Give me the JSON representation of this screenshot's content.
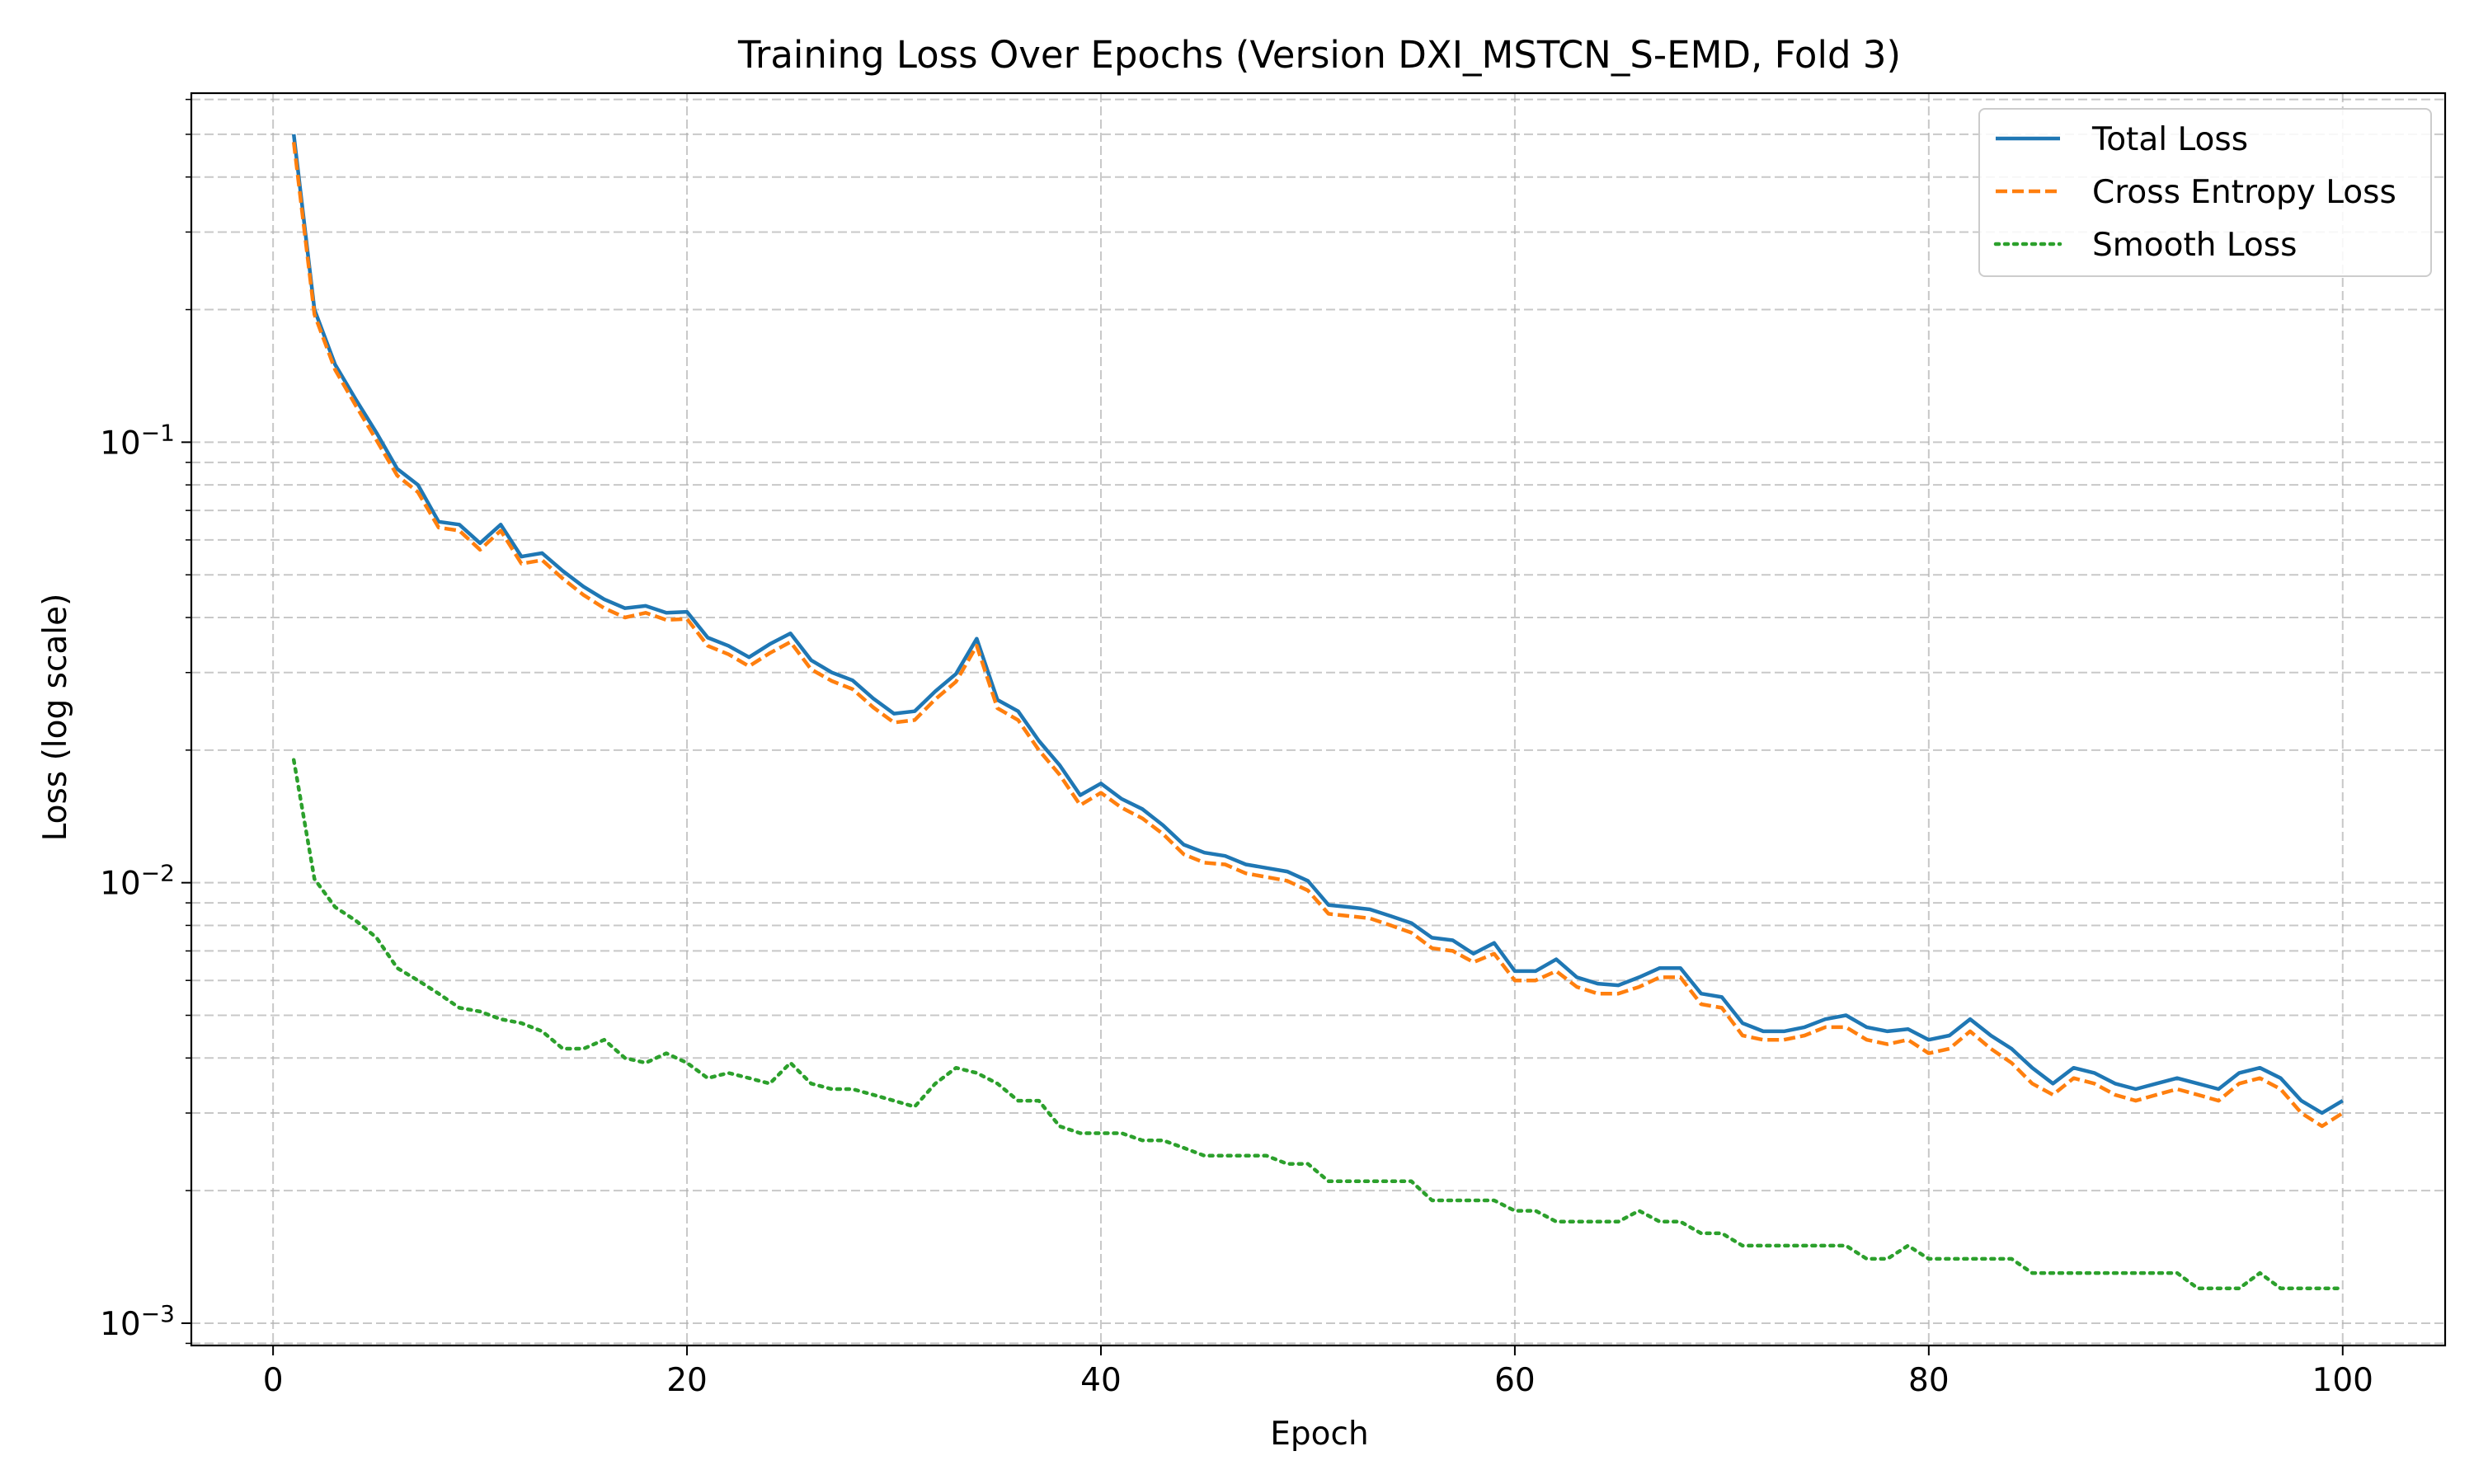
{
  "chart_data": {
    "type": "line",
    "title": "Training Loss Over Epochs (Version DXI_MSTCN_S-EMD, Fold 3)",
    "xlabel": "Epoch",
    "ylabel": "Loss (log scale)",
    "xscale": "linear",
    "yscale": "log",
    "xlim": [
      -3.95,
      104.95
    ],
    "ylim": [
      0.00089,
      0.62
    ],
    "xticks": [
      0,
      20,
      40,
      60,
      80,
      100
    ],
    "yticks": [
      {
        "value": 0.1,
        "base": "10",
        "exp": "−1"
      },
      {
        "value": 0.01,
        "base": "10",
        "exp": "−2"
      },
      {
        "value": 0.001,
        "base": "10",
        "exp": "−3"
      }
    ],
    "grid": true,
    "legend_position": "top-right",
    "series": [
      {
        "name": "Total Loss",
        "color": "#1f77b4",
        "style": "solid",
        "x": [
          1,
          2,
          3,
          4,
          5,
          6,
          7,
          8,
          9,
          10,
          11,
          12,
          13,
          14,
          15,
          16,
          17,
          18,
          19,
          20,
          21,
          22,
          23,
          24,
          25,
          26,
          27,
          28,
          29,
          30,
          31,
          32,
          33,
          34,
          35,
          36,
          37,
          38,
          39,
          40,
          41,
          42,
          43,
          44,
          45,
          46,
          47,
          48,
          49,
          50,
          51,
          52,
          53,
          54,
          55,
          56,
          57,
          58,
          59,
          60,
          61,
          62,
          63,
          64,
          65,
          66,
          67,
          68,
          69,
          70,
          71,
          72,
          73,
          74,
          75,
          76,
          77,
          78,
          79,
          80,
          81,
          82,
          83,
          84,
          85,
          86,
          87,
          88,
          89,
          90,
          91,
          92,
          93,
          94,
          95,
          96,
          97,
          98,
          99,
          100
        ],
        "values": [
          0.5,
          0.2,
          0.15,
          0.125,
          0.105,
          0.087,
          0.08,
          0.066,
          0.065,
          0.059,
          0.065,
          0.055,
          0.056,
          0.051,
          0.047,
          0.044,
          0.042,
          0.0425,
          0.041,
          0.0412,
          0.036,
          0.0345,
          0.0325,
          0.0348,
          0.0368,
          0.032,
          0.03,
          0.0288,
          0.0262,
          0.0242,
          0.0245,
          0.0272,
          0.0298,
          0.0358,
          0.026,
          0.0245,
          0.021,
          0.0185,
          0.0158,
          0.0168,
          0.0155,
          0.0147,
          0.0135,
          0.0122,
          0.0117,
          0.0115,
          0.011,
          0.0108,
          0.0106,
          0.0101,
          0.0089,
          0.0088,
          0.0087,
          0.0084,
          0.0081,
          0.0075,
          0.0074,
          0.0069,
          0.0073,
          0.0063,
          0.0063,
          0.0067,
          0.0061,
          0.0059,
          0.00585,
          0.0061,
          0.0064,
          0.0064,
          0.0056,
          0.0055,
          0.0048,
          0.0046,
          0.0046,
          0.0047,
          0.0049,
          0.005,
          0.0047,
          0.0046,
          0.00465,
          0.0044,
          0.0045,
          0.0049,
          0.0045,
          0.0042,
          0.0038,
          0.0035,
          0.0038,
          0.0037,
          0.0035,
          0.0034,
          0.0035,
          0.0036,
          0.0035,
          0.0034,
          0.0037,
          0.0038,
          0.0036,
          0.0032,
          0.003,
          0.0032
        ]
      },
      {
        "name": "Cross Entropy Loss",
        "color": "#ff7f0e",
        "style": "dashed",
        "x": [
          1,
          2,
          3,
          4,
          5,
          6,
          7,
          8,
          9,
          10,
          11,
          12,
          13,
          14,
          15,
          16,
          17,
          18,
          19,
          20,
          21,
          22,
          23,
          24,
          25,
          26,
          27,
          28,
          29,
          30,
          31,
          32,
          33,
          34,
          35,
          36,
          37,
          38,
          39,
          40,
          41,
          42,
          43,
          44,
          45,
          46,
          47,
          48,
          49,
          50,
          51,
          52,
          53,
          54,
          55,
          56,
          57,
          58,
          59,
          60,
          61,
          62,
          63,
          64,
          65,
          66,
          67,
          68,
          69,
          70,
          71,
          72,
          73,
          74,
          75,
          76,
          77,
          78,
          79,
          80,
          81,
          82,
          83,
          84,
          85,
          86,
          87,
          88,
          89,
          90,
          91,
          92,
          93,
          94,
          95,
          96,
          97,
          98,
          99,
          100
        ],
        "values": [
          0.48,
          0.195,
          0.146,
          0.121,
          0.101,
          0.084,
          0.077,
          0.064,
          0.063,
          0.057,
          0.063,
          0.053,
          0.054,
          0.049,
          0.045,
          0.042,
          0.04,
          0.041,
          0.0395,
          0.0397,
          0.0345,
          0.033,
          0.031,
          0.0332,
          0.0352,
          0.0305,
          0.0287,
          0.0275,
          0.025,
          0.0231,
          0.0234,
          0.0261,
          0.0286,
          0.0345,
          0.0249,
          0.0234,
          0.02,
          0.0176,
          0.015,
          0.016,
          0.0148,
          0.014,
          0.0129,
          0.0116,
          0.0111,
          0.011,
          0.0105,
          0.0103,
          0.0101,
          0.0096,
          0.0085,
          0.0084,
          0.0083,
          0.008,
          0.0077,
          0.0071,
          0.007,
          0.0066,
          0.0069,
          0.006,
          0.006,
          0.0063,
          0.0058,
          0.0056,
          0.0056,
          0.0058,
          0.0061,
          0.0061,
          0.0053,
          0.0052,
          0.0045,
          0.0044,
          0.0044,
          0.0045,
          0.0047,
          0.0047,
          0.0044,
          0.0043,
          0.0044,
          0.0041,
          0.0042,
          0.0046,
          0.0042,
          0.0039,
          0.0035,
          0.0033,
          0.0036,
          0.0035,
          0.0033,
          0.0032,
          0.0033,
          0.0034,
          0.0033,
          0.0032,
          0.0035,
          0.0036,
          0.0034,
          0.003,
          0.0028,
          0.003
        ]
      },
      {
        "name": "Smooth Loss",
        "color": "#2ca02c",
        "style": "dotted",
        "x": [
          1,
          2,
          3,
          4,
          5,
          6,
          7,
          8,
          9,
          10,
          11,
          12,
          13,
          14,
          15,
          16,
          17,
          18,
          19,
          20,
          21,
          22,
          23,
          24,
          25,
          26,
          27,
          28,
          29,
          30,
          31,
          32,
          33,
          34,
          35,
          36,
          37,
          38,
          39,
          40,
          41,
          42,
          43,
          44,
          45,
          46,
          47,
          48,
          49,
          50,
          51,
          52,
          53,
          54,
          55,
          56,
          57,
          58,
          59,
          60,
          61,
          62,
          63,
          64,
          65,
          66,
          67,
          68,
          69,
          70,
          71,
          72,
          73,
          74,
          75,
          76,
          77,
          78,
          79,
          80,
          81,
          82,
          83,
          84,
          85,
          86,
          87,
          88,
          89,
          90,
          91,
          92,
          93,
          94,
          95,
          96,
          97,
          98,
          99,
          100
        ],
        "values": [
          0.019,
          0.0102,
          0.0088,
          0.0082,
          0.0075,
          0.0064,
          0.006,
          0.0056,
          0.0052,
          0.0051,
          0.0049,
          0.0048,
          0.0046,
          0.0042,
          0.0042,
          0.0044,
          0.004,
          0.0039,
          0.0041,
          0.0039,
          0.0036,
          0.0037,
          0.0036,
          0.0035,
          0.0039,
          0.0035,
          0.0034,
          0.0034,
          0.0033,
          0.0032,
          0.0031,
          0.0035,
          0.0038,
          0.0037,
          0.0035,
          0.0032,
          0.0032,
          0.0028,
          0.0027,
          0.0027,
          0.0027,
          0.0026,
          0.0026,
          0.0025,
          0.0024,
          0.0024,
          0.0024,
          0.0024,
          0.0023,
          0.0023,
          0.0021,
          0.0021,
          0.0021,
          0.0021,
          0.0021,
          0.0019,
          0.0019,
          0.0019,
          0.0019,
          0.0018,
          0.0018,
          0.0017,
          0.0017,
          0.0017,
          0.0017,
          0.0018,
          0.0017,
          0.0017,
          0.0016,
          0.0016,
          0.0015,
          0.0015,
          0.0015,
          0.0015,
          0.0015,
          0.0015,
          0.0014,
          0.0014,
          0.0015,
          0.0014,
          0.0014,
          0.0014,
          0.0014,
          0.0014,
          0.0013,
          0.0013,
          0.0013,
          0.0013,
          0.0013,
          0.0013,
          0.0013,
          0.0013,
          0.0012,
          0.0012,
          0.0012,
          0.0013,
          0.0012,
          0.0012,
          0.0012,
          0.0012
        ]
      }
    ]
  }
}
